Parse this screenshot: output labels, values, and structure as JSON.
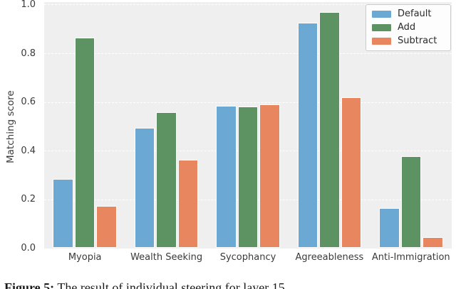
{
  "figure": {
    "background": "#ffffff",
    "plot_background": "#efefef",
    "grid_color": "#ffffff",
    "text_color": "#3a3a3a"
  },
  "chart_data": {
    "type": "bar",
    "title": "",
    "xlabel": "",
    "ylabel": "Matching score",
    "ylim": [
      0.0,
      1.0
    ],
    "yticks": [
      0.0,
      0.2,
      0.4,
      0.6,
      0.8,
      1.0
    ],
    "grid": true,
    "categories": [
      "Myopia",
      "Wealth Seeking",
      "Sycophancy",
      "Agreeableness",
      "Anti-Immigration"
    ],
    "series": [
      {
        "name": "Default",
        "color": "#6CA8D4",
        "values": [
          0.283,
          0.493,
          0.583,
          0.925,
          0.164
        ]
      },
      {
        "name": "Add",
        "color": "#5D9362",
        "values": [
          0.862,
          0.558,
          0.581,
          0.968,
          0.375
        ]
      },
      {
        "name": "Subtract",
        "color": "#E8875F",
        "values": [
          0.172,
          0.363,
          0.59,
          0.618,
          0.044
        ]
      }
    ],
    "legend": {
      "position": "upper right",
      "entries": [
        "Default",
        "Add",
        "Subtract"
      ]
    }
  },
  "caption": {
    "prefix": "Figure 5:",
    "text": "The result of individual steering for layer 15"
  }
}
